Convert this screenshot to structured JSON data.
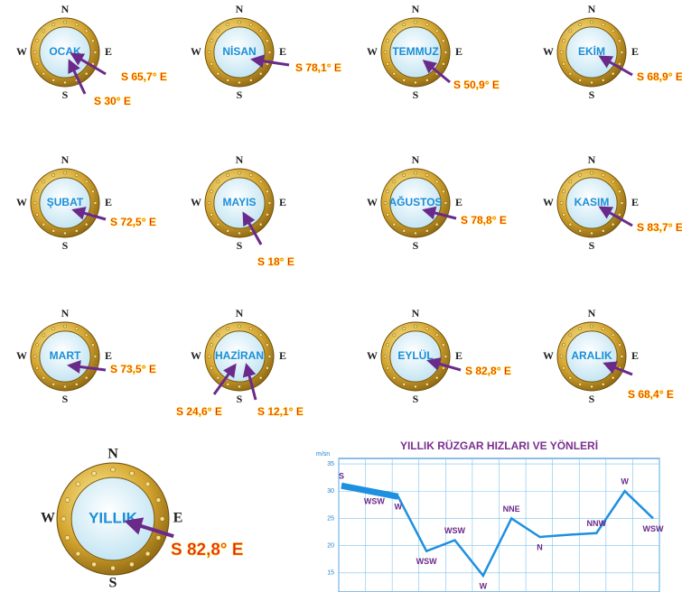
{
  "cardinals": {
    "n": "N",
    "e": "E",
    "s": "S",
    "w": "W"
  },
  "compasses": [
    {
      "month": "OCAK",
      "directions": [
        "S 65,7° E",
        "S 30° E"
      ]
    },
    {
      "month": "NİSAN",
      "directions": [
        "S 78,1° E"
      ]
    },
    {
      "month": "TEMMUZ",
      "directions": [
        "S 50,9° E"
      ]
    },
    {
      "month": "EKİM",
      "directions": [
        "S 68,9° E"
      ]
    },
    {
      "month": "ŞUBAT",
      "directions": [
        "S 72,5° E"
      ]
    },
    {
      "month": "MAYIS",
      "directions": [
        "S 18° E"
      ]
    },
    {
      "month": "AĞUSTOS",
      "directions": [
        "S 78,8° E"
      ]
    },
    {
      "month": "KASIM",
      "directions": [
        "S 83,7° E"
      ]
    },
    {
      "month": "MART",
      "directions": [
        "S 73,5° E"
      ]
    },
    {
      "month": "HAZİRAN",
      "directions": [
        "S 24,6° E",
        "S 12,1° E"
      ]
    },
    {
      "month": "EYLÜL",
      "directions": [
        "S 82,8° E"
      ]
    },
    {
      "month": "ARALIK",
      "directions": [
        "S 68,4° E"
      ]
    }
  ],
  "yearly": {
    "month": "YILLIK",
    "directions": [
      "S 82,8° E"
    ]
  },
  "chart_data": {
    "type": "line",
    "title": "YILLIK RÜZGAR HIZLARI VE YÖNLERİ",
    "y_label": "m/sn",
    "categories": [
      null,
      null,
      null,
      null,
      null,
      null,
      null,
      null,
      null,
      null,
      null,
      null
    ],
    "values": [
      31,
      30,
      29,
      19,
      21,
      14.5,
      25,
      21.6,
      22,
      22.3,
      30,
      25
    ],
    "point_labels": [
      "S",
      "WSW",
      "W",
      "WSW",
      "WSW",
      "W",
      "NNE",
      "N",
      null,
      "NNW",
      "W",
      "WSW"
    ],
    "color": "#1e90e0",
    "ylim": [
      11.5,
      36
    ],
    "yticks": [
      15,
      20,
      25,
      30,
      35
    ],
    "grid": true
  }
}
